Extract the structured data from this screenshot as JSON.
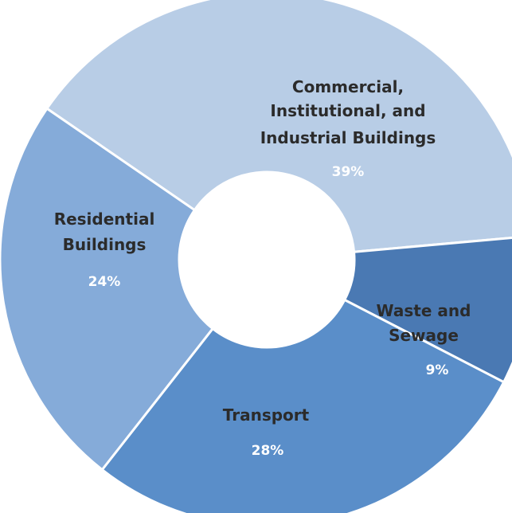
{
  "chart_data": {
    "type": "pie",
    "variant": "donut",
    "title": "",
    "legend": "none",
    "slices": [
      {
        "label_lines": [
          "Commercial,",
          "Institutional, and",
          "Industrial Buildings"
        ],
        "value": 39,
        "value_label": "39%",
        "color": "#b8cde6"
      },
      {
        "label_lines": [
          "Waste and",
          "Sewage"
        ],
        "value": 9,
        "value_label": "9%",
        "color": "#4a79b3"
      },
      {
        "label_lines": [
          "Transport"
        ],
        "value": 28,
        "value_label": "28%",
        "color": "#5a8ec9"
      },
      {
        "label_lines": [
          "Residential",
          "Buildings"
        ],
        "value": 24,
        "value_label": "24%",
        "color": "#85abd9"
      }
    ]
  }
}
